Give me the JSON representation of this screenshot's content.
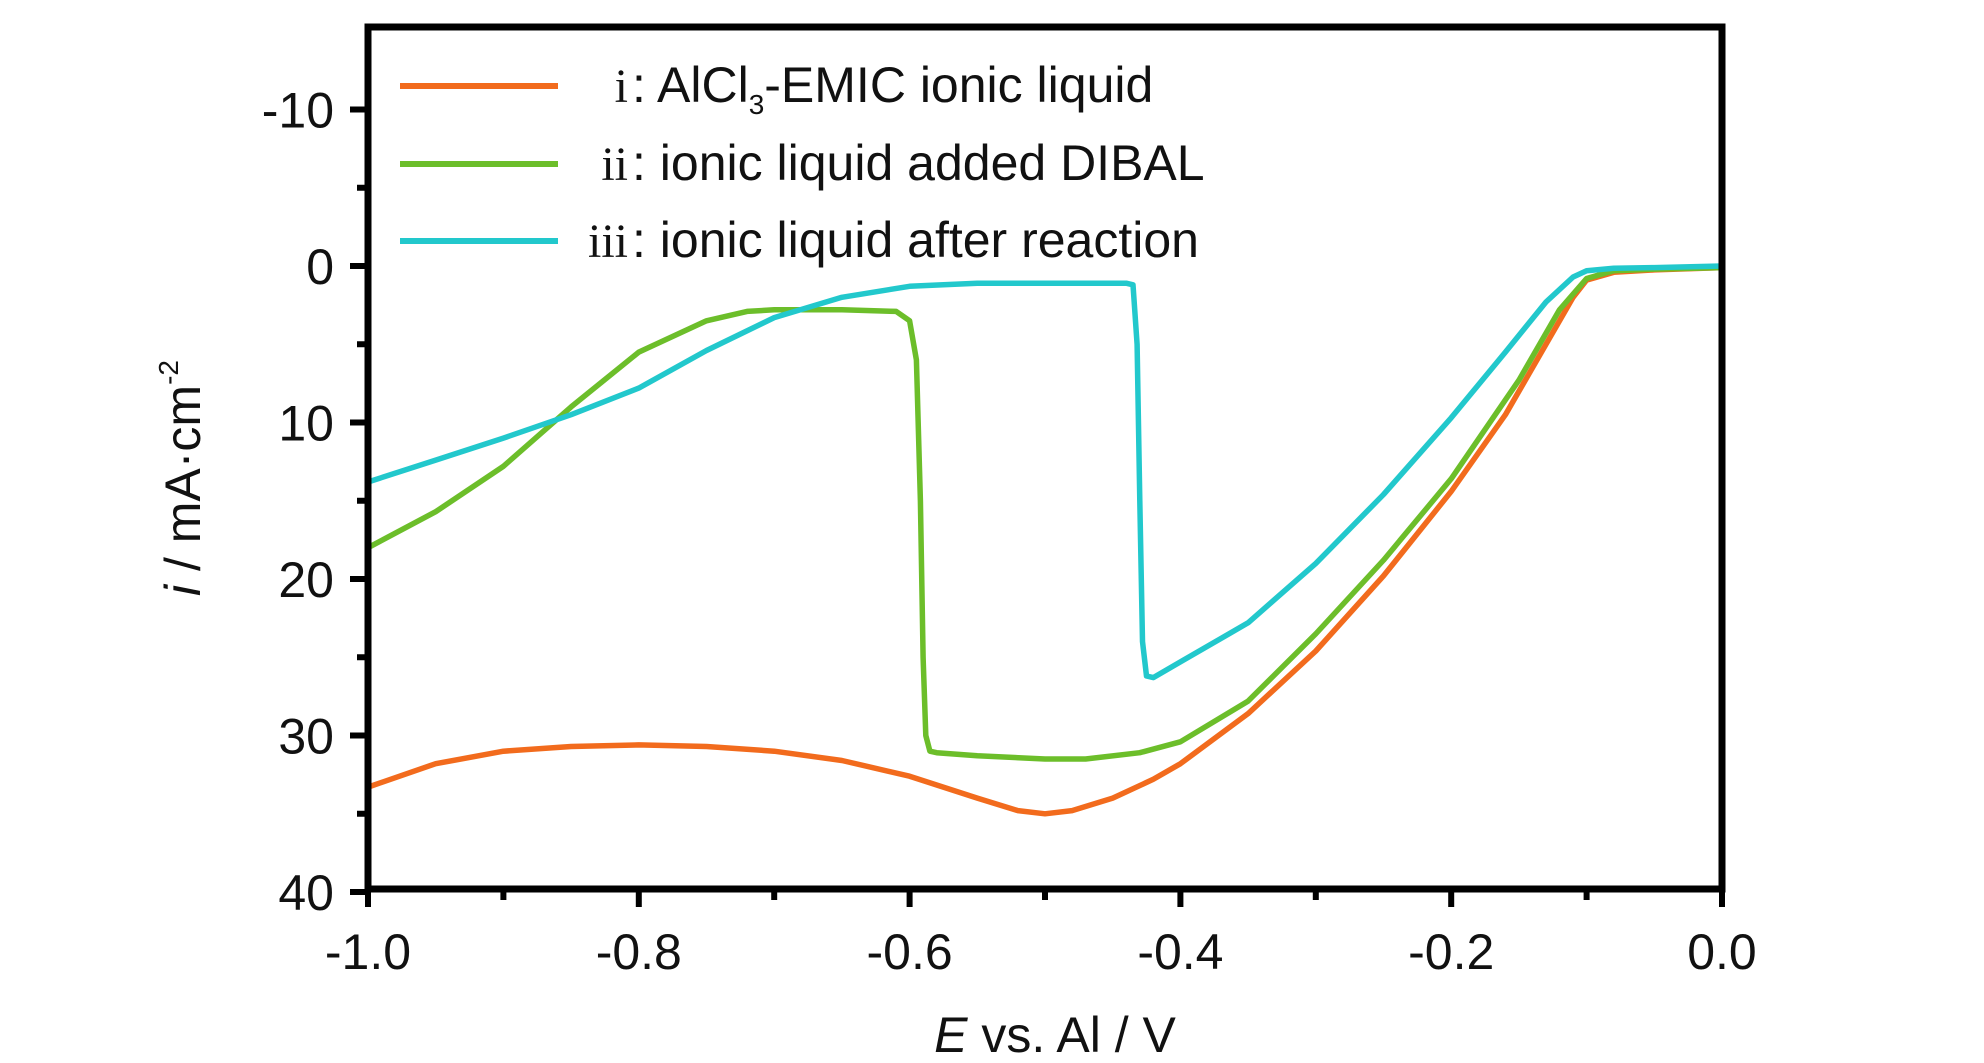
{
  "chart_data": {
    "type": "line",
    "title": "",
    "xlabel": {
      "italic": "E",
      "rest": " vs. Al / V"
    },
    "ylabel": {
      "italic": "i",
      "rest": " / mA·cm",
      "sup": "-2"
    },
    "xlim": [
      -1.0,
      0.0
    ],
    "ylim": [
      40,
      -15
    ],
    "y_inverted": true,
    "x_ticks": [
      -1.0,
      -0.8,
      -0.6,
      -0.4,
      -0.2,
      0.0
    ],
    "x_tick_labels": [
      "-1.0",
      "-0.8",
      "-0.6",
      "-0.4",
      "-0.2",
      "0.0"
    ],
    "y_ticks": [
      -10,
      0,
      10,
      20,
      30,
      40
    ],
    "y_tick_labels": [
      "-10",
      "0",
      "10",
      "20",
      "30",
      "40"
    ],
    "grid": false,
    "legend_position": "top-left",
    "colors": {
      "axis": "#000000",
      "i": "#f26b1d",
      "ii": "#6cbe2a",
      "iii": "#22c8cc"
    },
    "legend": [
      {
        "key": "i",
        "numeral": "i",
        "pre": ": AlCl",
        "sub": "3",
        "post": "-EMIC ionic liquid"
      },
      {
        "key": "ii",
        "numeral": "ii",
        "pre": ": ionic liquid added DIBAL",
        "sub": "",
        "post": ""
      },
      {
        "key": "iii",
        "numeral": "iii",
        "pre": ": ionic liquid after reaction",
        "sub": "",
        "post": ""
      }
    ],
    "series": [
      {
        "key": "i",
        "x": [
          -1.0,
          -0.95,
          -0.9,
          -0.85,
          -0.8,
          -0.75,
          -0.7,
          -0.65,
          -0.6,
          -0.55,
          -0.52,
          -0.5,
          -0.48,
          -0.45,
          -0.42,
          -0.4,
          -0.35,
          -0.3,
          -0.25,
          -0.2,
          -0.16,
          -0.13,
          -0.11,
          -0.1,
          -0.08,
          -0.05,
          0.0
        ],
        "y": [
          33.3,
          31.8,
          31.0,
          30.7,
          30.6,
          30.7,
          31.0,
          31.6,
          32.6,
          34.0,
          34.8,
          35.0,
          34.8,
          34.0,
          32.8,
          31.8,
          28.6,
          24.6,
          19.8,
          14.4,
          9.5,
          5.0,
          2.0,
          0.9,
          0.4,
          0.25,
          0.1
        ]
      },
      {
        "key": "ii",
        "x": [
          -1.0,
          -0.95,
          -0.9,
          -0.85,
          -0.8,
          -0.75,
          -0.72,
          -0.7,
          -0.65,
          -0.61,
          -0.6,
          -0.595,
          -0.592,
          -0.59,
          -0.588,
          -0.585,
          -0.58,
          -0.55,
          -0.5,
          -0.47,
          -0.43,
          -0.4,
          -0.35,
          -0.3,
          -0.25,
          -0.2,
          -0.15,
          -0.12,
          -0.1,
          -0.08,
          -0.05,
          0.0
        ],
        "y": [
          18.0,
          15.7,
          12.8,
          9.0,
          5.5,
          3.5,
          2.9,
          2.8,
          2.8,
          2.9,
          3.5,
          6.0,
          15.0,
          25.0,
          30.0,
          31.0,
          31.1,
          31.3,
          31.5,
          31.5,
          31.1,
          30.4,
          27.8,
          23.5,
          18.8,
          13.6,
          7.3,
          2.8,
          0.8,
          0.3,
          0.2,
          0.1
        ]
      },
      {
        "key": "iii",
        "x": [
          -1.0,
          -0.95,
          -0.9,
          -0.85,
          -0.8,
          -0.75,
          -0.7,
          -0.65,
          -0.6,
          -0.55,
          -0.5,
          -0.45,
          -0.44,
          -0.435,
          -0.432,
          -0.43,
          -0.428,
          -0.425,
          -0.42,
          -0.4,
          -0.35,
          -0.3,
          -0.25,
          -0.2,
          -0.16,
          -0.13,
          -0.11,
          -0.1,
          -0.08,
          -0.05,
          0.0
        ],
        "y": [
          13.8,
          12.4,
          11.0,
          9.5,
          7.8,
          5.4,
          3.3,
          2.0,
          1.3,
          1.1,
          1.1,
          1.1,
          1.1,
          1.2,
          5.0,
          15.0,
          24.0,
          26.2,
          26.3,
          25.3,
          22.8,
          19.0,
          14.6,
          9.7,
          5.5,
          2.3,
          0.7,
          0.3,
          0.15,
          0.1,
          0.0
        ]
      }
    ]
  }
}
